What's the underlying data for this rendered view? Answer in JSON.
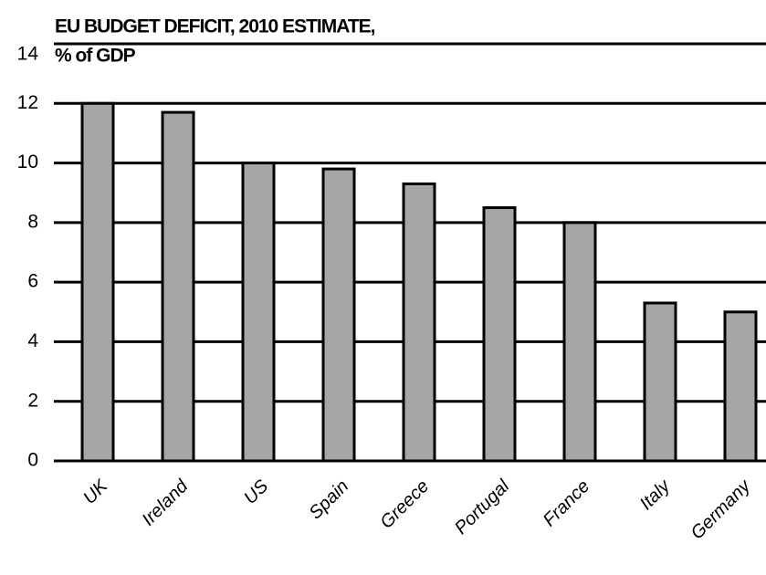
{
  "chart_data": {
    "type": "bar",
    "title": "EU BUDGET DEFICIT, 2010 ESTIMATE,",
    "subtitle": "% of GDP",
    "categories": [
      "UK",
      "Ireland",
      "US",
      "Spain",
      "Greece",
      "Portugal",
      "France",
      "Italy",
      "Germany"
    ],
    "values": [
      12,
      11.7,
      10,
      9.8,
      9.3,
      8.5,
      8.0,
      5.3,
      5.0
    ],
    "color": "#a6a6a6",
    "ylim": [
      0,
      14
    ],
    "yticks": [
      0,
      2,
      4,
      6,
      8,
      10,
      12,
      14
    ],
    "grid": true
  }
}
